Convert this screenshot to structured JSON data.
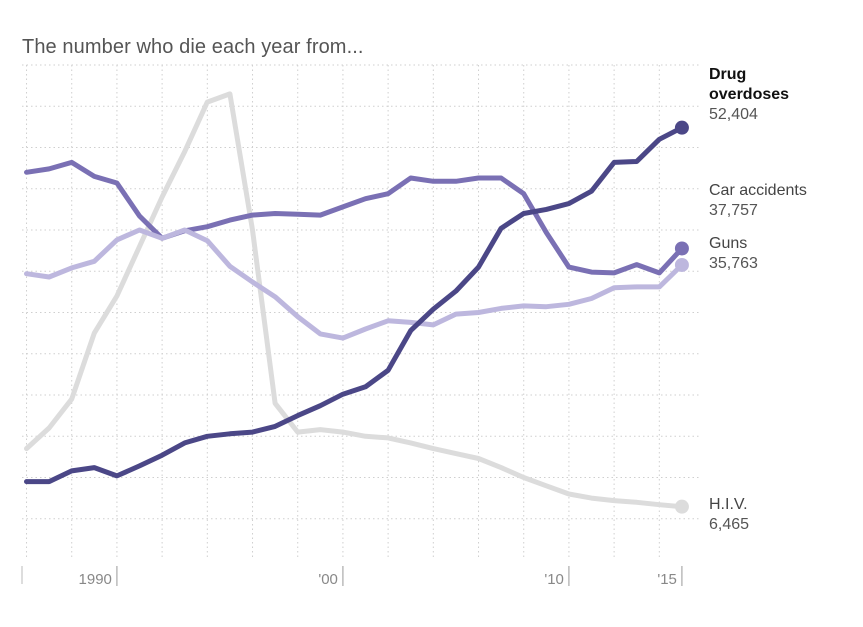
{
  "chart_data": {
    "type": "line",
    "title": "The number who die each year from...",
    "xlabel": "",
    "ylabel": "",
    "xlim": [
      1985.8,
      2015.8
    ],
    "ylim": [
      0,
      60000
    ],
    "grid": true,
    "x_ticks": [
      {
        "value": 1990,
        "label": "1990"
      },
      {
        "value": 2000,
        "label": "'00"
      },
      {
        "value": 2010,
        "label": "'10"
      },
      {
        "value": 2015,
        "label": "'15"
      }
    ],
    "x": [
      1986,
      1987,
      1988,
      1989,
      1990,
      1991,
      1992,
      1993,
      1994,
      1995,
      1996,
      1997,
      1998,
      1999,
      2000,
      2001,
      2002,
      2003,
      2004,
      2005,
      2006,
      2007,
      2008,
      2009,
      2010,
      2011,
      2012,
      2013,
      2014,
      2015
    ],
    "series": [
      {
        "name": "H.I.V.",
        "end_value_label": "6,465",
        "color": "#dcdcdc",
        "values": [
          13500,
          16000,
          19500,
          27500,
          32000,
          38000,
          44000,
          49500,
          55500,
          56500,
          40000,
          19000,
          15500,
          15800,
          15500,
          15000,
          14800,
          14200,
          13500,
          12900,
          12300,
          11200,
          10000,
          9000,
          8000,
          7500,
          7200,
          7000,
          6700,
          6465
        ]
      },
      {
        "name": "Car accidents",
        "end_value_label": "37,757",
        "color": "#7a70b4",
        "values": [
          47000,
          47400,
          48200,
          46500,
          45700,
          41700,
          39000,
          39900,
          40400,
          41200,
          41800,
          42000,
          41900,
          41800,
          42800,
          43800,
          44400,
          46300,
          45900,
          45900,
          46300,
          46300,
          44400,
          39700,
          35500,
          34900,
          34800,
          35800,
          34800,
          37757
        ]
      },
      {
        "name": "Guns",
        "end_value_label": "35,763",
        "color": "#bdb7de",
        "values": [
          34700,
          34300,
          35400,
          36200,
          38800,
          40000,
          39000,
          40000,
          38700,
          35600,
          33700,
          31900,
          29500,
          27400,
          26900,
          28000,
          29000,
          28800,
          28500,
          29800,
          30000,
          30500,
          30800,
          30700,
          31000,
          31700,
          33000,
          33100,
          33100,
          35763
        ]
      },
      {
        "name": "Drug overdoses",
        "end_value_label": "52,404",
        "color": "#4b4787",
        "values": [
          9500,
          9500,
          10800,
          11200,
          10200,
          11400,
          12700,
          14200,
          15000,
          15300,
          15500,
          16200,
          17500,
          18700,
          20100,
          21000,
          23000,
          27800,
          30400,
          32600,
          35500,
          40200,
          42000,
          42500,
          43200,
          44700,
          48200,
          48300,
          51000,
          52404
        ]
      }
    ]
  }
}
